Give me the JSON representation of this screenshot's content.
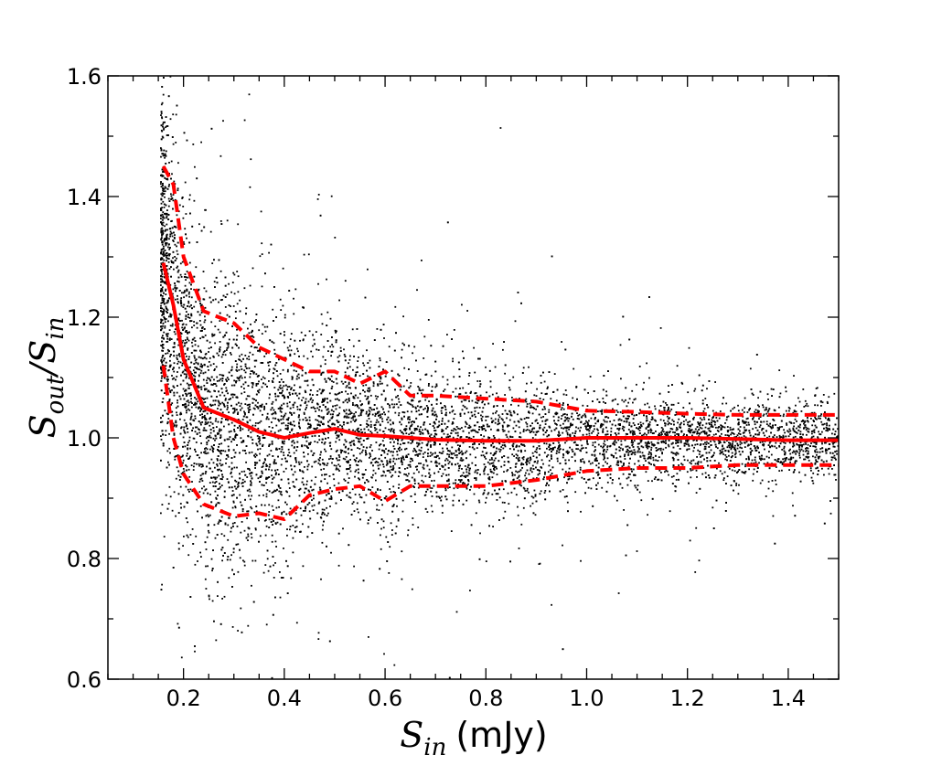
{
  "chart_data": {
    "type": "scatter",
    "title": "",
    "xlabel": {
      "symbol": "S",
      "subscript": "in",
      "unit": "(mJy)"
    },
    "ylabel": {
      "numerator_symbol": "S",
      "numerator_subscript": "out",
      "separator": "/",
      "denominator_symbol": "S",
      "denominator_subscript": "in"
    },
    "xlim": [
      0.05,
      1.5
    ],
    "ylim": [
      0.6,
      1.6
    ],
    "x_ticks": [
      0.2,
      0.4,
      0.6,
      0.8,
      1.0,
      1.2,
      1.4
    ],
    "x_tick_labels": [
      "0.2",
      "0.4",
      "0.6",
      "0.8",
      "1.0",
      "1.2",
      "1.4"
    ],
    "y_ticks": [
      0.6,
      0.8,
      1.0,
      1.2,
      1.4,
      1.6
    ],
    "y_tick_labels": [
      "0.6",
      "0.8",
      "1.0",
      "1.2",
      "1.4",
      "1.6"
    ],
    "x_minor_step": 0.05,
    "y_minor_step": 0.1,
    "grid": false,
    "scatter": {
      "name": "simulated sources",
      "color": "#000000",
      "n_points": 9000,
      "x_min": 0.155,
      "x_max": 1.5,
      "clip_y": [
        0.6,
        1.6
      ]
    },
    "series": [
      {
        "name": "median",
        "style": "solid",
        "color": "#ff0000",
        "x": [
          0.16,
          0.18,
          0.2,
          0.24,
          0.3,
          0.35,
          0.4,
          0.45,
          0.5,
          0.55,
          0.6,
          0.7,
          0.8,
          0.9,
          1.0,
          1.1,
          1.2,
          1.3,
          1.4,
          1.5
        ],
        "y": [
          1.29,
          1.22,
          1.13,
          1.05,
          1.03,
          1.01,
          1.0,
          1.008,
          1.015,
          1.005,
          1.003,
          0.997,
          0.995,
          0.995,
          1.0,
          1.0,
          1.0,
          0.998,
          0.996,
          0.996
        ]
      },
      {
        "name": "upper percentile",
        "style": "dashed",
        "color": "#ff0000",
        "x": [
          0.16,
          0.18,
          0.2,
          0.24,
          0.3,
          0.35,
          0.4,
          0.45,
          0.5,
          0.55,
          0.6,
          0.65,
          0.7,
          0.8,
          0.9,
          1.0,
          1.1,
          1.2,
          1.3,
          1.4,
          1.5
        ],
        "y": [
          1.45,
          1.42,
          1.3,
          1.21,
          1.19,
          1.15,
          1.13,
          1.11,
          1.11,
          1.09,
          1.11,
          1.07,
          1.07,
          1.065,
          1.06,
          1.045,
          1.043,
          1.04,
          1.038,
          1.038,
          1.038
        ]
      },
      {
        "name": "lower percentile",
        "style": "dashed",
        "color": "#ff0000",
        "x": [
          0.16,
          0.18,
          0.2,
          0.24,
          0.3,
          0.35,
          0.4,
          0.45,
          0.5,
          0.55,
          0.6,
          0.65,
          0.7,
          0.8,
          0.9,
          1.0,
          1.1,
          1.2,
          1.3,
          1.4,
          1.5
        ],
        "y": [
          1.12,
          1.0,
          0.94,
          0.89,
          0.87,
          0.875,
          0.865,
          0.905,
          0.915,
          0.92,
          0.895,
          0.92,
          0.92,
          0.92,
          0.93,
          0.945,
          0.95,
          0.95,
          0.955,
          0.955,
          0.955
        ]
      }
    ]
  }
}
